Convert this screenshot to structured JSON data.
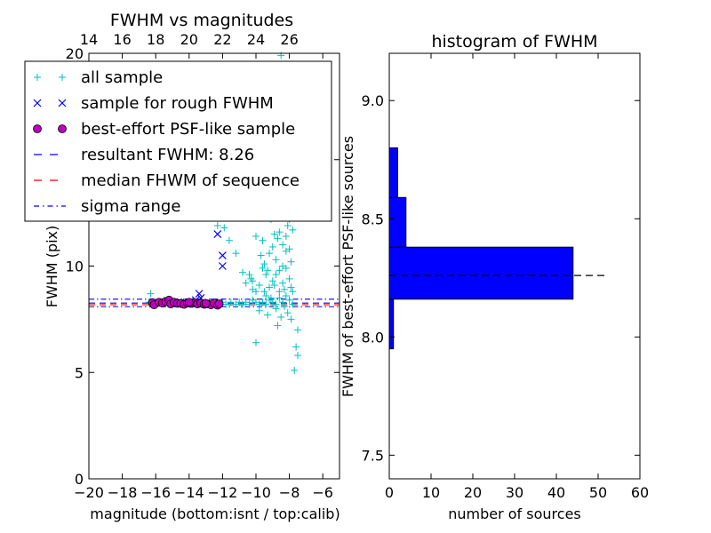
{
  "chart_data": [
    {
      "type": "scatter",
      "title": "FWHM vs magnitudes",
      "xlabel": "magnitude (bottom:isnt / top:calib)",
      "ylabel": "FWHM (pix)",
      "xlim": [
        -20,
        -5
      ],
      "ylim": [
        0,
        20
      ],
      "x_ticks": [
        -20,
        -18,
        -16,
        -14,
        -12,
        -10,
        -8,
        -6
      ],
      "x_tick_labels": [
        "−20",
        "−18",
        "−16",
        "−14",
        "−12",
        "−10",
        "−8",
        "−6"
      ],
      "y_ticks": [
        0,
        5,
        10,
        15,
        20
      ],
      "top_axis": {
        "ticks": [
          14,
          16,
          18,
          20,
          22,
          24,
          26
        ],
        "offset": 34
      },
      "legend_placement": "upper-left",
      "colors": {
        "all": "#00bfbf",
        "rough": "#0000ff",
        "best": "#bf00bf",
        "resultant": "#0000ff",
        "median": "#ff0000",
        "sigma": "#0000ff"
      },
      "legend": [
        {
          "label": "all sample",
          "style": "plus"
        },
        {
          "label": "sample for rough FWHM",
          "style": "x"
        },
        {
          "label": "best-effort PSF-like sample",
          "style": "circle"
        },
        {
          "label": "resultant FWHM: 8.26",
          "style": "dashed"
        },
        {
          "label": "median FHWM of sequence",
          "style": "dashed-red"
        },
        {
          "label": "sigma range",
          "style": "dashdot"
        }
      ],
      "resultant_fwhm": 8.26,
      "median_fwhm": 8.18,
      "sigma_range": [
        8.09,
        8.44
      ],
      "series": {
        "all_sample": [
          [
            -16.4,
            8.3
          ],
          [
            -16.3,
            8.7
          ],
          [
            -16.2,
            8.2
          ],
          [
            -16.0,
            8.3
          ],
          [
            -15.8,
            8.3
          ],
          [
            -15.5,
            8.4
          ],
          [
            -15.2,
            8.3
          ],
          [
            -15.0,
            8.2
          ],
          [
            -14.8,
            8.3
          ],
          [
            -14.5,
            8.3
          ],
          [
            -14.2,
            8.2
          ],
          [
            -14.0,
            8.3
          ],
          [
            -13.8,
            8.2
          ],
          [
            -13.5,
            8.3
          ],
          [
            -13.2,
            8.2
          ],
          [
            -13.0,
            8.3
          ],
          [
            -12.8,
            8.2
          ],
          [
            -12.5,
            8.3
          ],
          [
            -12.2,
            8.2
          ],
          [
            -12.0,
            8.3
          ],
          [
            -11.8,
            8.2
          ],
          [
            -11.5,
            8.3
          ],
          [
            -11.2,
            8.2
          ],
          [
            -11.0,
            8.3
          ],
          [
            -10.8,
            8.2
          ],
          [
            -10.6,
            8.3
          ],
          [
            -10.4,
            8.2
          ],
          [
            -10.2,
            8.4
          ],
          [
            -10.0,
            8.3
          ],
          [
            -9.8,
            8.2
          ],
          [
            -9.6,
            8.3
          ],
          [
            -9.4,
            8.2
          ],
          [
            -9.2,
            8.4
          ],
          [
            -9.0,
            8.3
          ],
          [
            -8.8,
            8.2
          ],
          [
            -8.6,
            8.5
          ],
          [
            -8.4,
            8.3
          ],
          [
            -8.2,
            8.6
          ],
          [
            -8.0,
            8.4
          ],
          [
            -7.8,
            8.2
          ],
          [
            -12.3,
            11.9
          ],
          [
            -11.9,
            11.8
          ],
          [
            -11.6,
            11.2
          ],
          [
            -11.2,
            10.6
          ],
          [
            -10.8,
            9.7
          ],
          [
            -10.6,
            9.2
          ],
          [
            -10.4,
            9.6
          ],
          [
            -10.2,
            8.9
          ],
          [
            -10.2,
            9.3
          ],
          [
            -10.0,
            8.8
          ],
          [
            -10.0,
            6.4
          ],
          [
            -9.8,
            7.9
          ],
          [
            -9.6,
            11.2
          ],
          [
            -9.5,
            10.1
          ],
          [
            -9.4,
            9.6
          ],
          [
            -9.3,
            7.7
          ],
          [
            -9.2,
            10.6
          ],
          [
            -9.1,
            12.2
          ],
          [
            -9.0,
            9.3
          ],
          [
            -8.9,
            11.5
          ],
          [
            -8.8,
            10.3
          ],
          [
            -8.7,
            7.2
          ],
          [
            -8.6,
            9.8
          ],
          [
            -8.5,
            12.6
          ],
          [
            -8.4,
            11.0
          ],
          [
            -8.3,
            8.9
          ],
          [
            -8.2,
            10.7
          ],
          [
            -8.1,
            11.9
          ],
          [
            -8.0,
            9.4
          ],
          [
            -7.9,
            7.5
          ],
          [
            -7.8,
            8.8
          ],
          [
            -7.7,
            5.1
          ],
          [
            -7.6,
            6.2
          ],
          [
            -7.5,
            5.8
          ],
          [
            -7.5,
            7.0
          ],
          [
            -7.8,
            11.7
          ],
          [
            -8.0,
            12.4
          ],
          [
            -8.2,
            9.9
          ],
          [
            -8.4,
            9.2
          ],
          [
            -8.6,
            8.8
          ],
          [
            -8.8,
            9.6
          ],
          [
            -9.0,
            10.9
          ],
          [
            -9.2,
            9.0
          ],
          [
            -9.4,
            8.6
          ],
          [
            -9.6,
            9.9
          ],
          [
            -9.8,
            9.1
          ],
          [
            -10.0,
            11.4
          ],
          [
            -10.3,
            9.4
          ],
          [
            -10.6,
            19.2
          ],
          [
            -10.4,
            19.4
          ],
          [
            -9.9,
            18.8
          ],
          [
            -8.5,
            19.9
          ],
          [
            -8.0,
            12.2
          ],
          [
            -8.3,
            12.9
          ],
          [
            -8.7,
            11.3
          ],
          [
            -9.1,
            8.5
          ],
          [
            -9.3,
            9.8
          ],
          [
            -9.5,
            8.8
          ],
          [
            -8.1,
            7.8
          ],
          [
            -7.9,
            10.2
          ],
          [
            -8.2,
            11.4
          ],
          [
            -8.4,
            10.0
          ],
          [
            -8.6,
            11.6
          ],
          [
            -8.9,
            9.1
          ],
          [
            -8.0,
            10.8
          ],
          [
            -7.9,
            9.0
          ],
          [
            -8.3,
            8.1
          ],
          [
            -8.5,
            7.6
          ],
          [
            -8.8,
            8.0
          ],
          [
            -9.7,
            10.5
          ]
        ],
        "rough_sample": [
          [
            -12.3,
            11.5
          ],
          [
            -12.0,
            10.5
          ],
          [
            -12.0,
            10.0
          ],
          [
            -13.4,
            8.7
          ],
          [
            -13.3,
            8.5
          ],
          [
            -13.6,
            8.4
          ],
          [
            -14.0,
            8.3
          ],
          [
            -14.5,
            8.3
          ],
          [
            -15.0,
            8.3
          ],
          [
            -16.0,
            8.3
          ],
          [
            -12.2,
            8.3
          ]
        ],
        "best_sample": [
          [
            -16.2,
            8.28
          ],
          [
            -16.1,
            8.18
          ],
          [
            -15.8,
            8.3
          ],
          [
            -15.6,
            8.26
          ],
          [
            -15.4,
            8.33
          ],
          [
            -15.2,
            8.4
          ],
          [
            -15.1,
            8.22
          ],
          [
            -14.9,
            8.3
          ],
          [
            -14.7,
            8.25
          ],
          [
            -14.5,
            8.24
          ],
          [
            -14.3,
            8.2
          ],
          [
            -14.1,
            8.26
          ],
          [
            -13.9,
            8.24
          ],
          [
            -13.7,
            8.28
          ],
          [
            -13.5,
            8.22
          ],
          [
            -13.3,
            8.26
          ],
          [
            -13.1,
            8.2
          ],
          [
            -12.9,
            8.22
          ],
          [
            -12.7,
            8.18
          ],
          [
            -12.5,
            8.26
          ],
          [
            -12.3,
            8.16
          ],
          [
            -12.2,
            8.22
          ],
          [
            -14.0,
            8.3
          ],
          [
            -13.0,
            8.24
          ]
        ]
      }
    },
    {
      "type": "bar",
      "orientation": "horizontal",
      "title": "histogram of FWHM",
      "xlabel": "number of sources",
      "ylabel": "FWHM of best-effort PSF-like sources",
      "xlim": [
        0,
        60
      ],
      "ylim": [
        7.4,
        9.2
      ],
      "x_ticks": [
        0,
        10,
        20,
        30,
        40,
        50,
        60
      ],
      "y_ticks": [
        7.5,
        8.0,
        8.5,
        9.0
      ],
      "bar_color": "#0000ff",
      "bins": [
        {
          "from": 7.95,
          "to": 8.16,
          "count": 1
        },
        {
          "from": 8.16,
          "to": 8.38,
          "count": 44
        },
        {
          "from": 8.38,
          "to": 8.59,
          "count": 4
        },
        {
          "from": 8.59,
          "to": 8.8,
          "count": 2
        }
      ],
      "reference_line": {
        "y": 8.26,
        "x_range": [
          0,
          52
        ]
      }
    }
  ]
}
